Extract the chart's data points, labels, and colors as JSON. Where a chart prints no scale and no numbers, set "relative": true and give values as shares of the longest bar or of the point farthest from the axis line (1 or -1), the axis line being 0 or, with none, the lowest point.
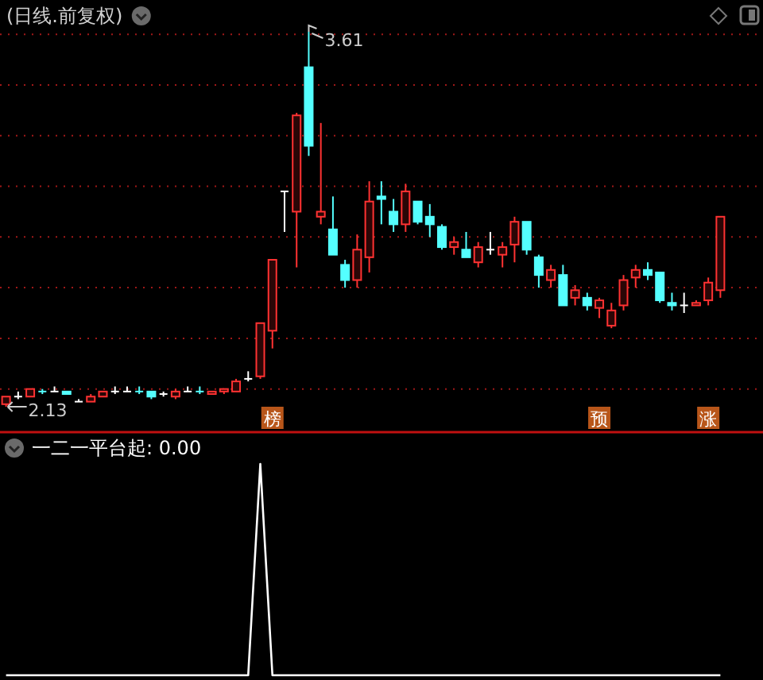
{
  "chart_data": [
    {
      "type": "candlestick",
      "title": "(日线.前复权)",
      "categories": [
        null,
        null,
        null,
        null,
        null,
        null,
        null,
        null,
        null,
        null,
        null,
        null,
        null,
        null,
        null,
        null,
        null,
        null,
        null,
        null,
        null,
        null,
        null,
        null,
        null,
        null,
        null,
        null,
        null,
        null,
        null,
        null,
        null,
        null,
        null,
        null,
        null,
        null,
        null,
        null,
        null,
        null,
        null,
        null,
        null,
        null,
        null,
        null,
        null,
        null,
        null,
        null,
        null,
        null,
        null,
        null,
        null,
        null,
        null,
        null
      ],
      "ohlc": [
        [
          2.14,
          2.17,
          2.13,
          2.17
        ],
        [
          2.17,
          2.19,
          2.16,
          2.17
        ],
        [
          2.17,
          2.2,
          2.17,
          2.2
        ],
        [
          2.19,
          2.2,
          2.18,
          2.19
        ],
        [
          2.19,
          2.21,
          2.19,
          2.19
        ],
        [
          2.19,
          2.19,
          2.18,
          2.18
        ],
        [
          2.15,
          2.16,
          2.15,
          2.15
        ],
        [
          2.15,
          2.18,
          2.15,
          2.17
        ],
        [
          2.17,
          2.19,
          2.17,
          2.19
        ],
        [
          2.19,
          2.21,
          2.18,
          2.19
        ],
        [
          2.19,
          2.21,
          2.19,
          2.19
        ],
        [
          2.19,
          2.21,
          2.18,
          2.19
        ],
        [
          2.19,
          2.19,
          2.16,
          2.17
        ],
        [
          2.18,
          2.19,
          2.17,
          2.18
        ],
        [
          2.17,
          2.2,
          2.16,
          2.19
        ],
        [
          2.19,
          2.21,
          2.19,
          2.19
        ],
        [
          2.19,
          2.21,
          2.18,
          2.19
        ],
        [
          2.18,
          2.19,
          2.18,
          2.19
        ],
        [
          2.19,
          2.2,
          2.18,
          2.2
        ],
        [
          2.19,
          2.24,
          2.19,
          2.23
        ],
        [
          2.24,
          2.27,
          2.23,
          2.24
        ],
        [
          2.25,
          2.46,
          2.24,
          2.46
        ],
        [
          2.43,
          2.71,
          2.36,
          2.71
        ],
        [
          2.98,
          2.98,
          2.82,
          2.98
        ],
        [
          2.9,
          3.29,
          2.68,
          3.28
        ],
        [
          3.47,
          3.61,
          3.12,
          3.16
        ],
        [
          2.88,
          3.25,
          2.85,
          2.9
        ],
        [
          2.83,
          2.96,
          2.73,
          2.73
        ],
        [
          2.69,
          2.71,
          2.6,
          2.63
        ],
        [
          2.63,
          2.81,
          2.6,
          2.75
        ],
        [
          2.72,
          3.02,
          2.66,
          2.94
        ],
        [
          2.96,
          3.02,
          2.85,
          2.95
        ],
        [
          2.9,
          2.95,
          2.82,
          2.85
        ],
        [
          2.85,
          3.01,
          2.82,
          2.98
        ],
        [
          2.94,
          2.94,
          2.85,
          2.86
        ],
        [
          2.88,
          2.93,
          2.8,
          2.85
        ],
        [
          2.84,
          2.85,
          2.75,
          2.76
        ],
        [
          2.76,
          2.8,
          2.73,
          2.78
        ],
        [
          2.75,
          2.82,
          2.72,
          2.72
        ],
        [
          2.7,
          2.78,
          2.68,
          2.76
        ],
        [
          2.75,
          2.82,
          2.73,
          2.75
        ],
        [
          2.73,
          2.78,
          2.68,
          2.76
        ],
        [
          2.77,
          2.88,
          2.7,
          2.86
        ],
        [
          2.86,
          2.86,
          2.73,
          2.75
        ],
        [
          2.72,
          2.73,
          2.6,
          2.65
        ],
        [
          2.63,
          2.69,
          2.6,
          2.67
        ],
        [
          2.65,
          2.69,
          2.53,
          2.53
        ],
        [
          2.56,
          2.61,
          2.53,
          2.59
        ],
        [
          2.56,
          2.58,
          2.51,
          2.53
        ],
        [
          2.52,
          2.56,
          2.48,
          2.55
        ],
        [
          2.45,
          2.54,
          2.44,
          2.51
        ],
        [
          2.53,
          2.65,
          2.51,
          2.63
        ],
        [
          2.64,
          2.69,
          2.6,
          2.67
        ],
        [
          2.67,
          2.7,
          2.63,
          2.65
        ],
        [
          2.66,
          2.66,
          2.54,
          2.55
        ],
        [
          2.54,
          2.58,
          2.51,
          2.53
        ],
        [
          2.53,
          2.58,
          2.5,
          2.53
        ],
        [
          2.53,
          2.55,
          2.53,
          2.54
        ],
        [
          2.55,
          2.64,
          2.53,
          2.62
        ],
        [
          2.59,
          2.88,
          2.56,
          2.88
        ]
      ],
      "colors": [
        "#ff3232",
        "#ffffff",
        "#ff3232",
        "#54ffff",
        "#ffffff",
        "#54ffff",
        "#ffffff",
        "#ff3232",
        "#ff3232",
        "#ffffff",
        "#ffffff",
        "#54ffff",
        "#54ffff",
        "#ffffff",
        "#ff3232",
        "#ffffff",
        "#54ffff",
        "#ff3232",
        "#ff3232",
        "#ff3232",
        "#ffffff",
        "#ff3232",
        "#ff3232",
        "#ffffff",
        "#ff3232",
        "#54ffff",
        "#ff3232",
        "#54ffff",
        "#54ffff",
        "#ff3232",
        "#ff3232",
        "#54ffff",
        "#54ffff",
        "#ff3232",
        "#54ffff",
        "#54ffff",
        "#54ffff",
        "#ff3232",
        "#54ffff",
        "#ff3232",
        "#ffffff",
        "#ff3232",
        "#ff3232",
        "#54ffff",
        "#54ffff",
        "#ff3232",
        "#54ffff",
        "#ff3232",
        "#54ffff",
        "#ff3232",
        "#ff3232",
        "#ff3232",
        "#ff3232",
        "#54ffff",
        "#54ffff",
        "#54ffff",
        "#ffffff",
        "#ff3232",
        "#ff3232",
        "#ff3232"
      ],
      "yticks": [
        {
          "value": 3.6,
          "label": null
        },
        {
          "value": 3.4,
          "label": null
        },
        {
          "value": 3.2,
          "label": null
        },
        {
          "value": 3.0,
          "label": null
        },
        {
          "value": 2.8,
          "label": null
        },
        {
          "value": 2.6,
          "label": null
        },
        {
          "value": 2.4,
          "label": null
        },
        {
          "value": 2.2,
          "label": null
        }
      ],
      "grid": "y",
      "tick_labels": false,
      "annotations": [
        "3.61",
        "2.13",
        "榜",
        "预",
        "涨"
      ]
    },
    {
      "type": "line",
      "title": "一二一平台起: 0.00",
      "relative": true,
      "color": "#ffffff",
      "categories": [
        null,
        null,
        null,
        null,
        null,
        null,
        null,
        null,
        null,
        null,
        null,
        null,
        null,
        null,
        null,
        null,
        null,
        null,
        null,
        null,
        null,
        null,
        null,
        null,
        null,
        null,
        null,
        null,
        null,
        null,
        null,
        null,
        null,
        null,
        null,
        null,
        null,
        null,
        null,
        null,
        null,
        null,
        null,
        null,
        null,
        null,
        null,
        null,
        null,
        null,
        null,
        null,
        null,
        null,
        null,
        null,
        null,
        null,
        null,
        null
      ],
      "values": [
        0,
        0,
        0,
        0,
        0,
        0,
        0,
        0,
        0,
        0,
        0,
        0,
        0,
        0,
        0,
        0,
        0,
        0,
        0,
        0,
        0,
        1,
        0,
        0,
        0,
        0,
        0,
        0,
        0,
        0,
        0,
        0,
        0,
        0,
        0,
        0,
        0,
        0,
        0,
        0,
        0,
        0,
        0,
        0,
        0,
        0,
        0,
        0,
        0,
        0,
        0,
        0,
        0,
        0,
        0,
        0,
        0,
        0,
        0,
        0
      ],
      "tick_labels": false
    }
  ]
}
